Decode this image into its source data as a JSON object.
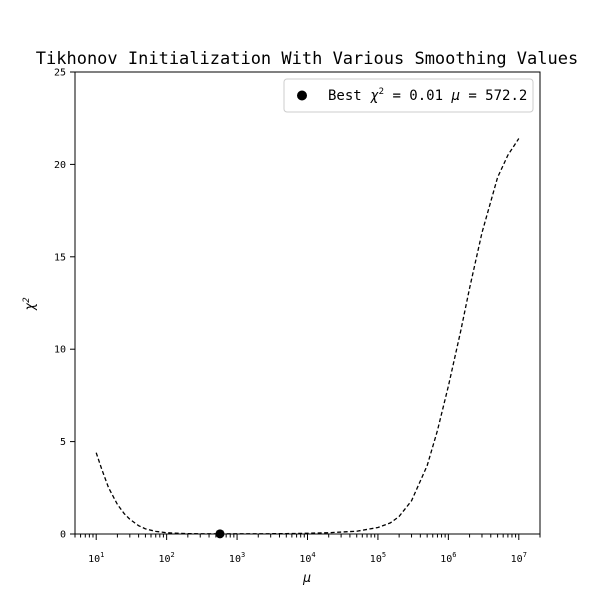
{
  "chart_data": {
    "type": "line",
    "title": "Tikhonov Initialization With Various Smoothing Values",
    "xlabel": "μ",
    "ylabel": "χ",
    "ylabel_superscript": "2",
    "x_scale": "log",
    "xlim": [
      5,
      20000000
    ],
    "ylim": [
      0,
      25
    ],
    "grid": false,
    "legend_position": "top-right",
    "y_ticks": [
      0,
      5,
      10,
      15,
      20,
      25
    ],
    "x_major_ticks": [
      10,
      100,
      1000,
      10000,
      100000,
      1000000,
      10000000
    ],
    "x_tick_labels": [
      {
        "base": "10",
        "exp": "1"
      },
      {
        "base": "10",
        "exp": "2"
      },
      {
        "base": "10",
        "exp": "3"
      },
      {
        "base": "10",
        "exp": "4"
      },
      {
        "base": "10",
        "exp": "5"
      },
      {
        "base": "10",
        "exp": "6"
      },
      {
        "base": "10",
        "exp": "7"
      }
    ],
    "series": [
      {
        "style": "dashed",
        "color": "#000000",
        "x": [
          10,
          12,
          15,
          20,
          25,
          30,
          40,
          50,
          70,
          100,
          150,
          200,
          300,
          500,
          572.2,
          1000,
          2000,
          5000,
          10000,
          20000,
          50000,
          100000,
          150000,
          200000,
          300000,
          500000,
          700000,
          1000000,
          1500000,
          2000000,
          3000000,
          5000000,
          7000000,
          10000000
        ],
        "y": [
          4.4,
          3.5,
          2.5,
          1.6,
          1.1,
          0.8,
          0.45,
          0.28,
          0.14,
          0.07,
          0.035,
          0.02,
          0.012,
          0.01,
          0.01,
          0.01,
          0.012,
          0.02,
          0.04,
          0.07,
          0.15,
          0.35,
          0.6,
          0.95,
          1.8,
          3.7,
          5.6,
          8.0,
          11.0,
          13.3,
          16.3,
          19.3,
          20.5,
          21.4
        ]
      }
    ],
    "best_point": {
      "x": 572.2,
      "y": 0.01,
      "color": "#000000"
    },
    "legend": {
      "prefix": "Best ",
      "chi_symbol": "χ",
      "chi_exp": "2",
      "middle": " = 0.01 ",
      "mu_symbol": "μ",
      "suffix": " = 572.2"
    }
  }
}
